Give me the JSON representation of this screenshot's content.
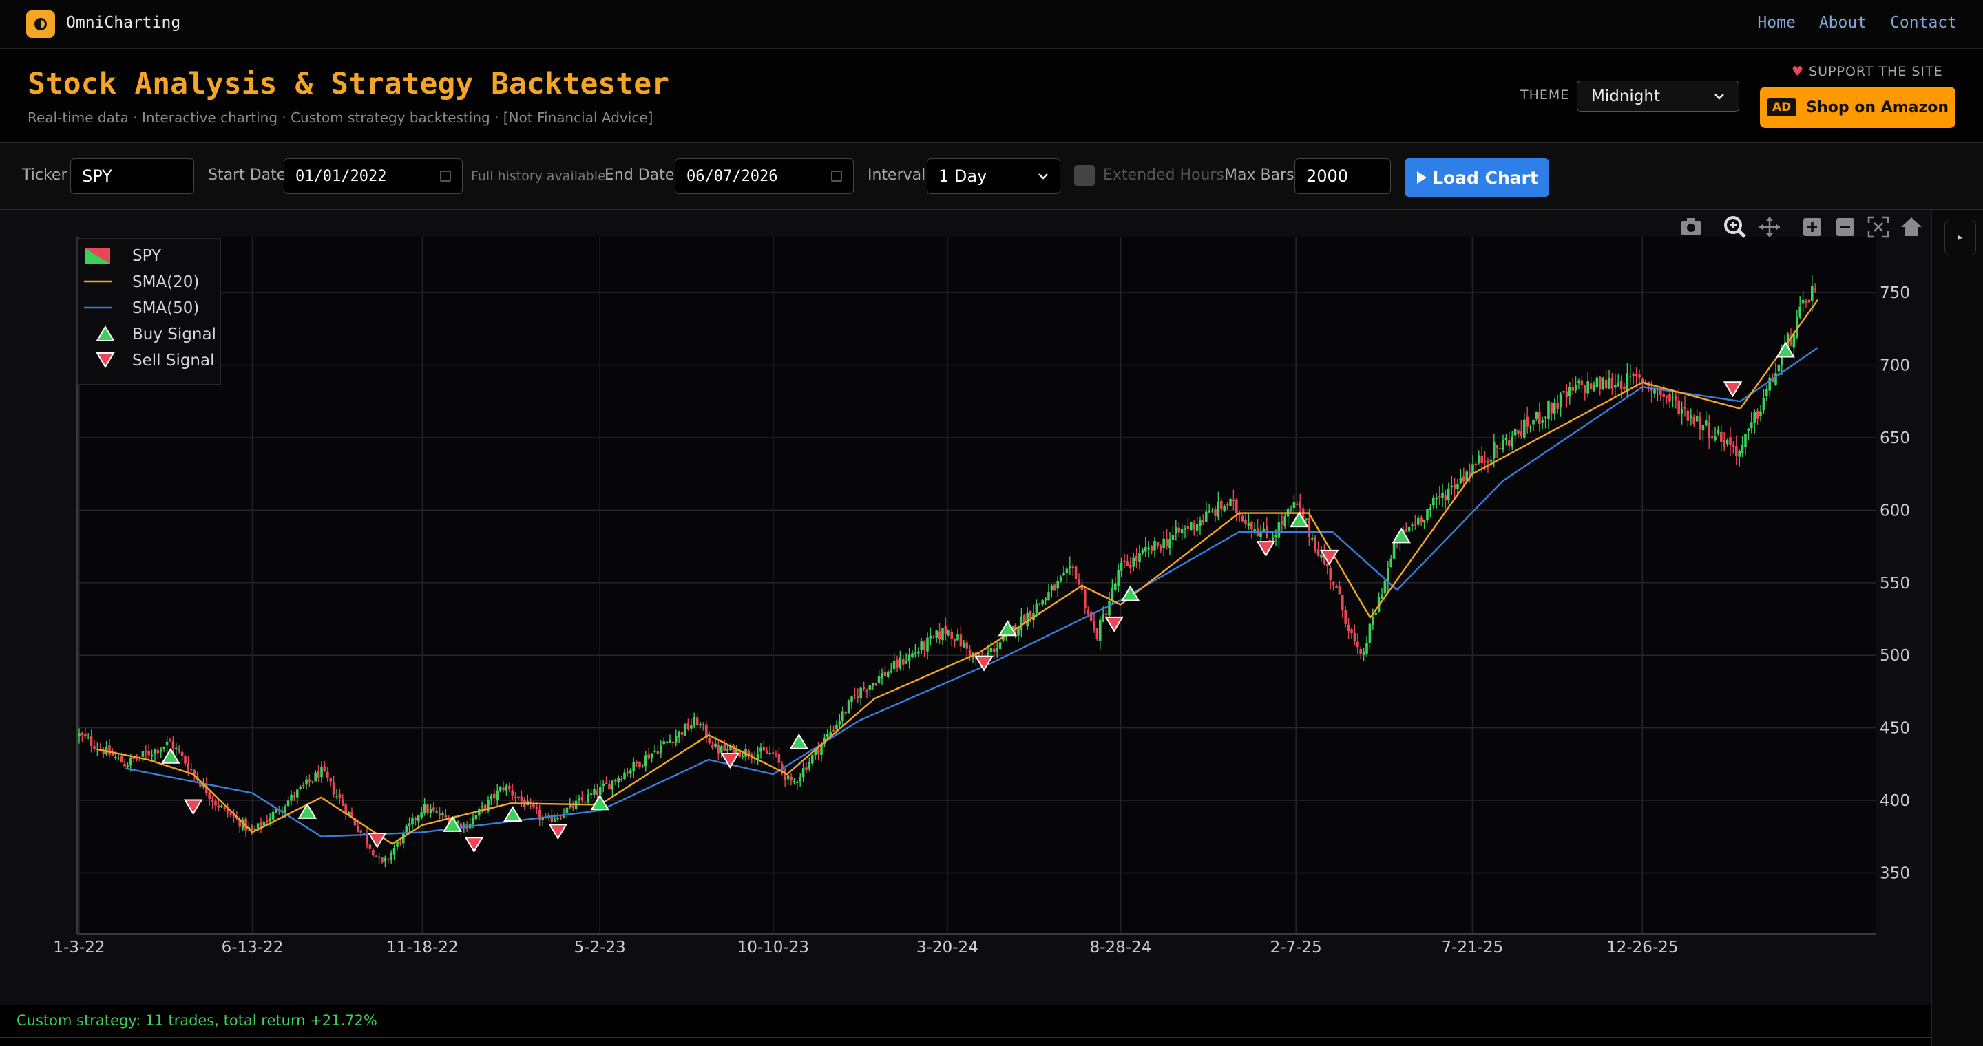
{
  "nav": {
    "brand": "OmniCharting",
    "links": [
      "Home",
      "About",
      "Contact"
    ]
  },
  "header": {
    "title": "Stock Analysis & Strategy Backtester",
    "subtitle": "Real-time data · Interactive charting · Custom strategy backtesting · [Not Financial Advice]",
    "theme_label": "THEME",
    "theme_value": "Midnight",
    "support_label": "SUPPORT THE SITE",
    "ad_badge": "AD",
    "amazon_label": "Shop on Amazon"
  },
  "controls": {
    "ticker_label": "Ticker",
    "ticker_value": "SPY",
    "start_label": "Start Date",
    "start_value": "01/01/2022",
    "history_hint": "Full history available",
    "end_label": "End Date",
    "end_value": "06/07/2026",
    "interval_label": "Interval",
    "interval_value": "1 Day",
    "extended_label": "Extended Hours",
    "extended_checked": false,
    "maxbars_label": "Max Bars",
    "maxbars_value": "2000",
    "load_label": "Load Chart"
  },
  "toolbar": [
    "camera-icon",
    "zoom-icon",
    "pan-icon",
    "zoom-in-icon",
    "zoom-out-icon",
    "autoscale-icon",
    "home-icon"
  ],
  "colors": {
    "up": "#3ccf5a",
    "down": "#e84855",
    "sma20": "#f5a524",
    "sma50": "#3b7dd8",
    "accent": "#f5a524",
    "button": "#2f7fe8"
  },
  "chart_data": {
    "type": "candlestick",
    "title": "",
    "xlabel": "",
    "ylabel": "",
    "ylim": [
      308,
      788
    ],
    "yticks": [
      350,
      400,
      450,
      500,
      550,
      600,
      650,
      700,
      750
    ],
    "xticks": [
      "1-3-22",
      "6-13-22",
      "11-18-22",
      "5-2-23",
      "10-10-23",
      "3-20-24",
      "8-28-24",
      "2-7-25",
      "7-21-25",
      "12-26-25"
    ],
    "legend": [
      "SPY",
      "SMA(20)",
      "SMA(50)",
      "Buy Signal",
      "Sell Signal"
    ],
    "legend_position": "top-left",
    "grid": true,
    "close_path": [
      [
        "1-3-22",
        445
      ],
      [
        "2-15-22",
        425
      ],
      [
        "3-29-22",
        440
      ],
      [
        "5-10-22",
        398
      ],
      [
        "6-13-22",
        378
      ],
      [
        "8-16-22",
        420
      ],
      [
        "10-12-22",
        355
      ],
      [
        "11-18-22",
        395
      ],
      [
        "12-28-22",
        382
      ],
      [
        "2-2-23",
        410
      ],
      [
        "3-13-23",
        385
      ],
      [
        "5-2-23",
        407
      ],
      [
        "7-31-23",
        455
      ],
      [
        "8-18-23",
        435
      ],
      [
        "10-10-23",
        432
      ],
      [
        "10-27-23",
        410
      ],
      [
        "12-29-23",
        475
      ],
      [
        "3-20-24",
        518
      ],
      [
        "4-19-24",
        495
      ],
      [
        "7-16-24",
        560
      ],
      [
        "8-5-24",
        512
      ],
      [
        "8-28-24",
        560
      ],
      [
        "12-6-24",
        605
      ],
      [
        "1-13-25",
        580
      ],
      [
        "2-7-25",
        604
      ],
      [
        "3-13-25",
        552
      ],
      [
        "4-8-25",
        496
      ],
      [
        "5-12-25",
        580
      ],
      [
        "7-21-25",
        630
      ],
      [
        "10-28-25",
        685
      ],
      [
        "12-26-25",
        690
      ],
      [
        "3-27-26",
        640
      ],
      [
        "5-22-26",
        735
      ],
      [
        "6-3-26",
        755
      ],
      [
        "6-7-26",
        740
      ]
    ],
    "sma20_path": [
      [
        "1-21-22",
        435
      ],
      [
        "3-8-22",
        428
      ],
      [
        "4-19-22",
        418
      ],
      [
        "6-13-22",
        378
      ],
      [
        "8-16-22",
        402
      ],
      [
        "10-21-22",
        370
      ],
      [
        "11-18-22",
        383
      ],
      [
        "2-8-23",
        398
      ],
      [
        "5-2-23",
        397
      ],
      [
        "8-11-23",
        445
      ],
      [
        "10-23-23",
        418
      ],
      [
        "1-12-24",
        470
      ],
      [
        "4-19-24",
        502
      ],
      [
        "7-23-24",
        548
      ],
      [
        "8-28-24",
        535
      ],
      [
        "12-16-24",
        598
      ],
      [
        "2-19-25",
        598
      ],
      [
        "4-17-25",
        526
      ],
      [
        "7-21-25",
        625
      ],
      [
        "12-26-25",
        688
      ],
      [
        "3-27-26",
        670
      ],
      [
        "6-7-26",
        745
      ]
    ],
    "sma50_path": [
      [
        "2-15-22",
        422
      ],
      [
        "6-13-22",
        405
      ],
      [
        "8-16-22",
        375
      ],
      [
        "11-18-22",
        378
      ],
      [
        "5-2-23",
        393
      ],
      [
        "8-11-23",
        428
      ],
      [
        "10-10-23",
        418
      ],
      [
        "12-29-23",
        455
      ],
      [
        "5-1-24",
        495
      ],
      [
        "8-28-24",
        538
      ],
      [
        "12-16-24",
        585
      ],
      [
        "3-13-25",
        585
      ],
      [
        "5-12-25",
        545
      ],
      [
        "8-18-25",
        620
      ],
      [
        "12-26-25",
        685
      ],
      [
        "3-27-26",
        675
      ],
      [
        "6-7-26",
        712
      ]
    ],
    "buy_signals": [
      [
        "3-29-22",
        430
      ],
      [
        "8-3-22",
        392
      ],
      [
        "12-16-22",
        383
      ],
      [
        "2-10-23",
        390
      ],
      [
        "5-2-23",
        398
      ],
      [
        "11-3-23",
        440
      ],
      [
        "5-15-24",
        518
      ],
      [
        "9-6-24",
        542
      ],
      [
        "2-10-25",
        593
      ],
      [
        "5-16-25",
        582
      ],
      [
        "5-8-26",
        710
      ]
    ],
    "sell_signals": [
      [
        "4-19-22",
        396
      ],
      [
        "10-7-22",
        373
      ],
      [
        "1-5-23",
        370
      ],
      [
        "3-24-23",
        379
      ],
      [
        "8-31-23",
        428
      ],
      [
        "4-23-24",
        495
      ],
      [
        "8-22-24",
        522
      ],
      [
        "1-10-25",
        574
      ],
      [
        "3-10-25",
        568
      ],
      [
        "3-20-26",
        684
      ]
    ]
  },
  "status": {
    "text": "Custom strategy: 11 trades, total return +21.72%"
  }
}
